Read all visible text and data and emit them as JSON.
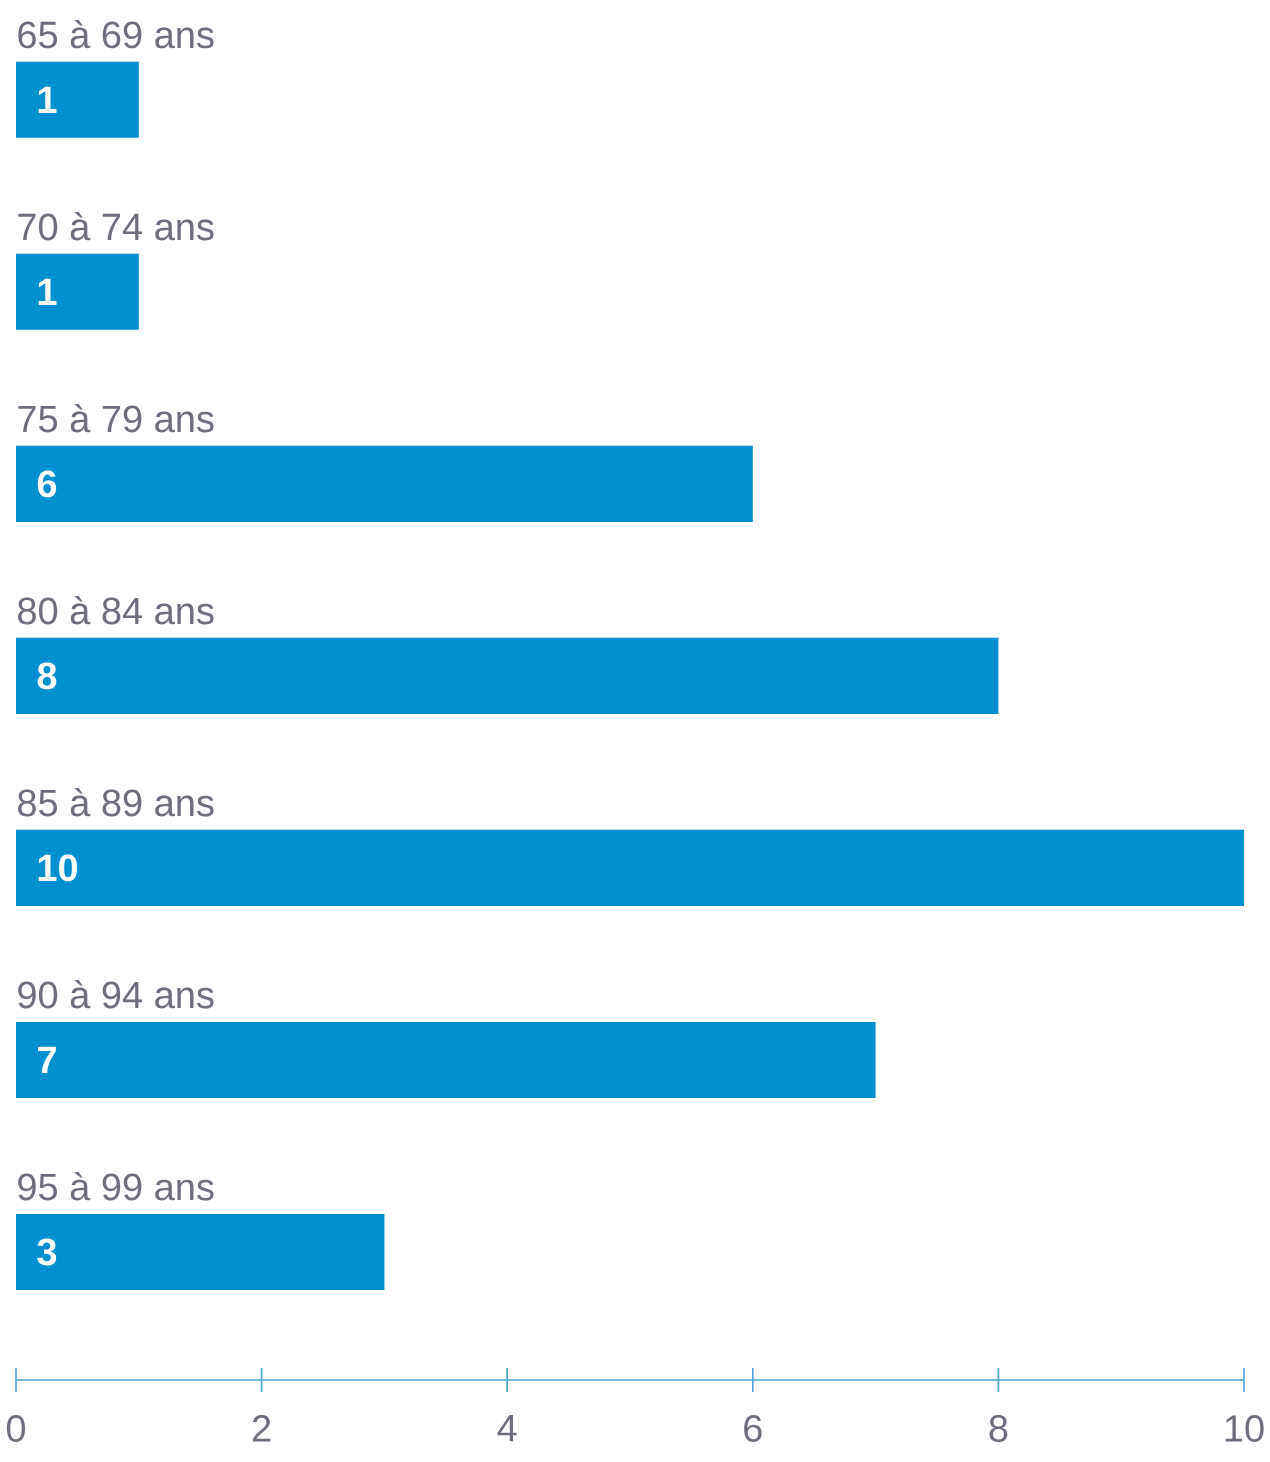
{
  "chart_data": {
    "type": "bar",
    "orientation": "horizontal",
    "categories": [
      "65 à 69 ans",
      "70 à 74 ans",
      "75 à 79 ans",
      "80 à 84 ans",
      "85 à 89 ans",
      "90 à 94 ans",
      "95 à 99 ans"
    ],
    "values": [
      1,
      1,
      6,
      8,
      10,
      7,
      3
    ],
    "color": "#0090d0",
    "data_labels": true,
    "xlim": [
      0,
      10
    ],
    "xticks": [
      0,
      2,
      4,
      6,
      8,
      10
    ],
    "grid": false
  }
}
